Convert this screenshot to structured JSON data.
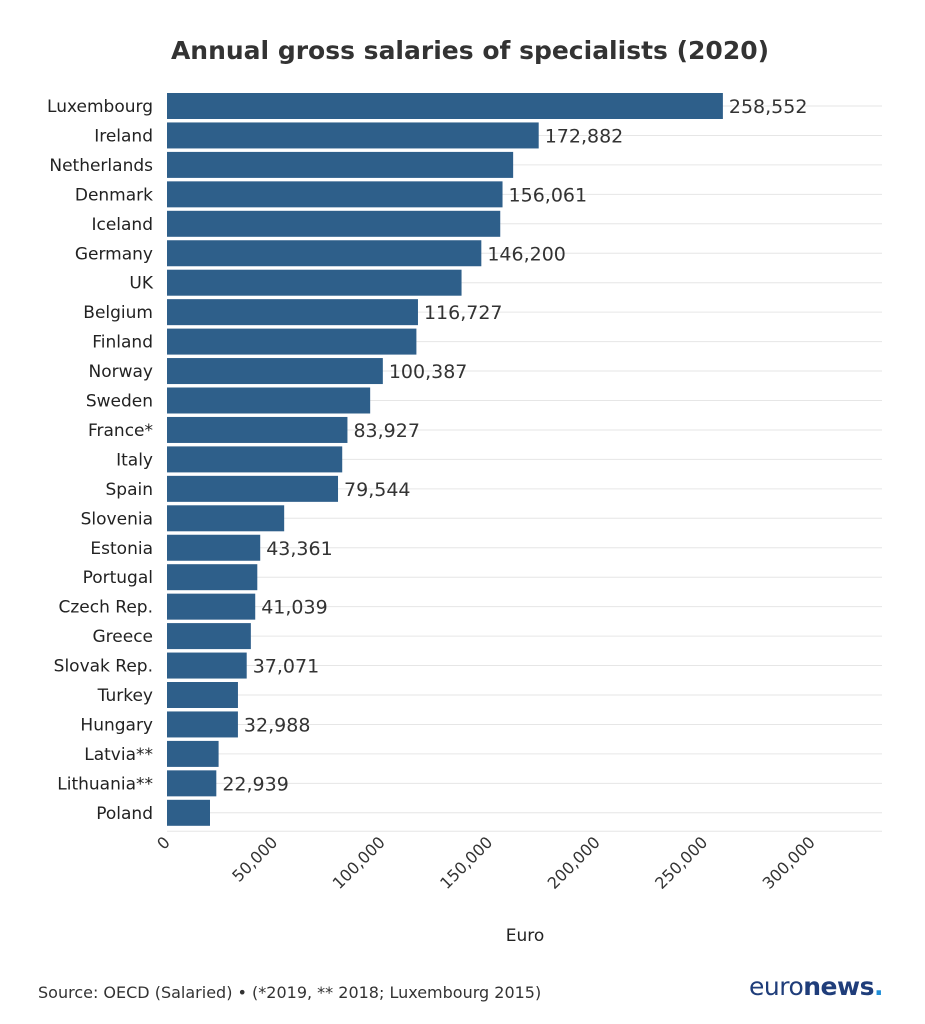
{
  "chart_data": {
    "type": "bar",
    "orientation": "horizontal",
    "title": "Annual gross salaries of specialists (2020)",
    "xlabel": "Euro",
    "ylabel": "",
    "xlim": [
      0,
      335000
    ],
    "xticks": [
      0,
      50000,
      100000,
      150000,
      200000,
      250000,
      300000
    ],
    "xtick_labels": [
      "0",
      "50,000",
      "100,000",
      "150,000",
      "200,000",
      "250,000",
      "300,000"
    ],
    "grid": "horizontal lines",
    "bar_color": "#2e5f8a",
    "categories": [
      "Luxembourg",
      "Ireland",
      "Netherlands",
      "Denmark",
      "Iceland",
      "Germany",
      "UK",
      "Belgium",
      "Finland",
      "Norway",
      "Sweden",
      "France*",
      "Italy",
      "Spain",
      "Slovenia",
      "Estonia",
      "Portugal",
      "Czech Rep.",
      "Greece",
      "Slovak Rep.",
      "Turkey",
      "Hungary",
      "Latvia**",
      "Lithuania**",
      "Poland"
    ],
    "values": [
      258552,
      172882,
      161000,
      156061,
      155000,
      146200,
      137000,
      116727,
      116000,
      100387,
      94500,
      83927,
      81500,
      79544,
      54500,
      43361,
      42000,
      41039,
      39000,
      37071,
      33000,
      32988,
      24000,
      22939,
      20000
    ],
    "data_labels": [
      "258,552",
      "172,882",
      "",
      "156,061",
      "",
      "146,200",
      "",
      "116,727",
      "",
      "100,387",
      "",
      "83,927",
      "",
      "79,544",
      "",
      "43,361",
      "",
      "41,039",
      "",
      "37,071",
      "",
      "32,988",
      "",
      "22,939",
      ""
    ]
  },
  "source": "Source: OECD (Salaried) • (*2019, ** 2018; Luxembourg 2015)",
  "logo": {
    "part1": "euro",
    "part2": "news",
    "dot": "."
  }
}
